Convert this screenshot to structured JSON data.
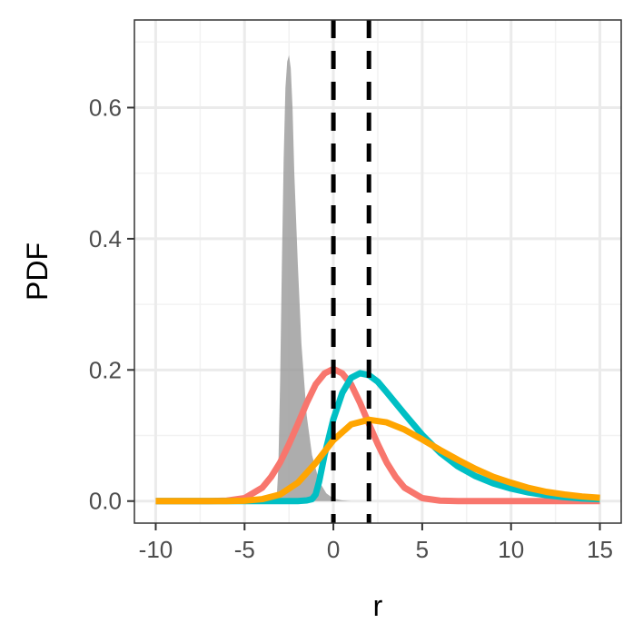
{
  "chart_data": {
    "type": "line",
    "title": "",
    "xlabel": "r",
    "ylabel": "PDF",
    "xlim": [
      -11.2,
      16.2
    ],
    "ylim": [
      -0.0336,
      0.7336
    ],
    "x_ticks": [
      -10,
      -5,
      0,
      5,
      10,
      15
    ],
    "x_tick_labels": [
      "-10",
      "-5",
      "0",
      "5",
      "10",
      "15"
    ],
    "y_ticks": [
      0.0,
      0.2,
      0.4,
      0.6
    ],
    "y_tick_labels": [
      "0.0",
      "0.2",
      "0.4",
      "0.6"
    ],
    "grid": true,
    "legend": "none",
    "vlines": {
      "x": [
        0,
        2
      ],
      "style": "dashed",
      "color": "#000000"
    },
    "series": [
      {
        "kind": "area",
        "color": "#999999",
        "points": [
          [
            -3.2,
            0.0
          ],
          [
            -3.1,
            0.05
          ],
          [
            -3.0,
            0.18
          ],
          [
            -2.9,
            0.36
          ],
          [
            -2.8,
            0.52
          ],
          [
            -2.7,
            0.63
          ],
          [
            -2.6,
            0.67
          ],
          [
            -2.5,
            0.68
          ],
          [
            -2.4,
            0.66
          ],
          [
            -2.3,
            0.6
          ],
          [
            -2.2,
            0.5
          ],
          [
            -2.0,
            0.36
          ],
          [
            -1.8,
            0.24
          ],
          [
            -1.5,
            0.13
          ],
          [
            -1.2,
            0.07
          ],
          [
            -0.8,
            0.03
          ],
          [
            -0.4,
            0.012
          ],
          [
            0.0,
            0.004
          ],
          [
            0.5,
            0.001
          ],
          [
            1.0,
            0.0
          ]
        ]
      },
      {
        "kind": "line",
        "color": "#F8766D",
        "points": [
          [
            -10,
            0.0
          ],
          [
            -7,
            0.0
          ],
          [
            -6,
            0.0007
          ],
          [
            -5,
            0.0045
          ],
          [
            -4,
            0.0205
          ],
          [
            -3.5,
            0.037
          ],
          [
            -3,
            0.0588
          ],
          [
            -2.5,
            0.0868
          ],
          [
            -2,
            0.1176
          ],
          [
            -1.5,
            0.1497
          ],
          [
            -1,
            0.1778
          ],
          [
            -0.5,
            0.1947
          ],
          [
            0,
            0.2015
          ],
          [
            0.5,
            0.1947
          ],
          [
            1,
            0.1778
          ],
          [
            1.5,
            0.1497
          ],
          [
            2,
            0.1176
          ],
          [
            2.5,
            0.0868
          ],
          [
            3,
            0.0588
          ],
          [
            3.5,
            0.037
          ],
          [
            4,
            0.0205
          ],
          [
            5,
            0.0045
          ],
          [
            6,
            0.0007
          ],
          [
            7,
            0.0
          ],
          [
            10,
            0.0
          ],
          [
            15,
            0.0
          ]
        ]
      },
      {
        "kind": "line",
        "color": "#00BFC4",
        "points": [
          [
            -10,
            0.0
          ],
          [
            -2,
            0.0
          ],
          [
            -1.5,
            0.001
          ],
          [
            -1.2,
            0.003
          ],
          [
            -1.0,
            0.01
          ],
          [
            -0.8,
            0.03
          ],
          [
            -0.5,
            0.07
          ],
          [
            0,
            0.125
          ],
          [
            0.5,
            0.165
          ],
          [
            1,
            0.188
          ],
          [
            1.5,
            0.195
          ],
          [
            2,
            0.192
          ],
          [
            2.5,
            0.182
          ],
          [
            3,
            0.166
          ],
          [
            4,
            0.133
          ],
          [
            5,
            0.101
          ],
          [
            6,
            0.074
          ],
          [
            7,
            0.053
          ],
          [
            8,
            0.038
          ],
          [
            9,
            0.027
          ],
          [
            10,
            0.019
          ],
          [
            11,
            0.013
          ],
          [
            12,
            0.009
          ],
          [
            13,
            0.006
          ],
          [
            14,
            0.004
          ],
          [
            15,
            0.003
          ]
        ]
      },
      {
        "kind": "line",
        "color": "#FFA500",
        "points": [
          [
            -10,
            0.0
          ],
          [
            -6,
            0.0
          ],
          [
            -5,
            0.0005
          ],
          [
            -4,
            0.003
          ],
          [
            -3,
            0.01
          ],
          [
            -2,
            0.028
          ],
          [
            -1,
            0.058
          ],
          [
            0,
            0.093
          ],
          [
            1,
            0.117
          ],
          [
            2,
            0.124
          ],
          [
            3,
            0.12
          ],
          [
            4,
            0.109
          ],
          [
            5,
            0.094
          ],
          [
            6,
            0.078
          ],
          [
            7,
            0.063
          ],
          [
            8,
            0.049
          ],
          [
            9,
            0.037
          ],
          [
            10,
            0.028
          ],
          [
            11,
            0.02
          ],
          [
            12,
            0.014
          ],
          [
            13,
            0.01
          ],
          [
            14,
            0.007
          ],
          [
            15,
            0.005
          ]
        ]
      }
    ]
  }
}
